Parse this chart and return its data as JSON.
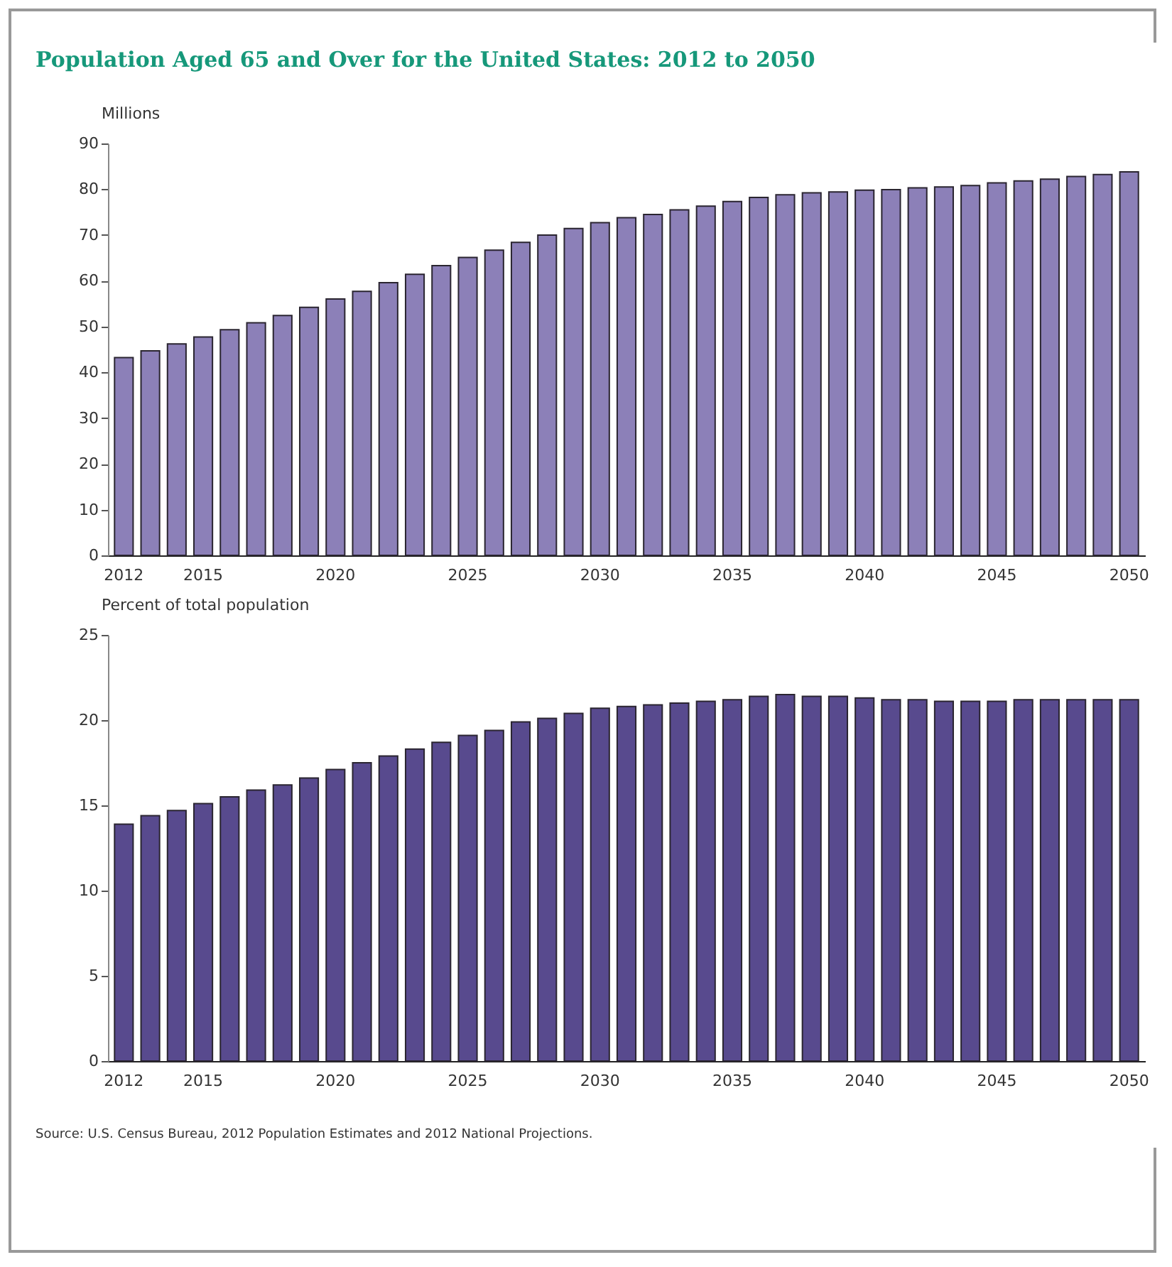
{
  "chart_data": [
    {
      "type": "bar",
      "title": "Population Aged 65 and Over for the United States: 2012 to 2050",
      "ylabel": "Millions",
      "categories": [
        "2012",
        null,
        null,
        "2015",
        null,
        null,
        null,
        null,
        "2020",
        null,
        null,
        null,
        null,
        "2025",
        null,
        null,
        null,
        null,
        "2030",
        null,
        null,
        null,
        null,
        "2035",
        null,
        null,
        null,
        null,
        "2040",
        null,
        null,
        null,
        null,
        "2045",
        null,
        null,
        null,
        null,
        "2050"
      ],
      "values": [
        43.2,
        44.7,
        46.2,
        47.7,
        49.3,
        50.8,
        52.4,
        54.2,
        56.0,
        57.7,
        59.6,
        61.4,
        63.3,
        65.1,
        66.7,
        68.4,
        70.0,
        71.4,
        72.7,
        73.8,
        74.5,
        75.5,
        76.3,
        77.3,
        78.2,
        78.8,
        79.2,
        79.4,
        79.8,
        79.9,
        80.3,
        80.5,
        80.8,
        81.4,
        81.8,
        82.2,
        82.8,
        83.2,
        83.8
      ],
      "color": "#8c80b8",
      "ylim": [
        0,
        90
      ],
      "yticks": [
        0,
        10,
        20,
        30,
        40,
        50,
        60,
        70,
        80,
        90
      ],
      "grid": false
    },
    {
      "type": "bar",
      "ylabel": "Percent of total population",
      "categories": [
        "2012",
        null,
        null,
        "2015",
        null,
        null,
        null,
        null,
        "2020",
        null,
        null,
        null,
        null,
        "2025",
        null,
        null,
        null,
        null,
        "2030",
        null,
        null,
        null,
        null,
        "2035",
        null,
        null,
        null,
        null,
        "2040",
        null,
        null,
        null,
        null,
        "2045",
        null,
        null,
        null,
        null,
        "2050"
      ],
      "values": [
        13.9,
        14.4,
        14.7,
        15.1,
        15.5,
        15.9,
        16.2,
        16.6,
        17.1,
        17.5,
        17.9,
        18.3,
        18.7,
        19.1,
        19.4,
        19.9,
        20.1,
        20.4,
        20.7,
        20.8,
        20.9,
        21.0,
        21.1,
        21.2,
        21.4,
        21.5,
        21.4,
        21.4,
        21.3,
        21.2,
        21.2,
        21.1,
        21.1,
        21.1,
        21.2,
        21.2,
        21.2,
        21.2,
        21.2
      ],
      "color": "#584a8e",
      "ylim": [
        0,
        25
      ],
      "yticks": [
        0,
        5,
        10,
        15,
        20,
        25
      ],
      "grid": false,
      "annotations": [
        "Source: U.S. Census Bureau, 2012 Population Estimates and 2012 National Projections."
      ]
    }
  ]
}
